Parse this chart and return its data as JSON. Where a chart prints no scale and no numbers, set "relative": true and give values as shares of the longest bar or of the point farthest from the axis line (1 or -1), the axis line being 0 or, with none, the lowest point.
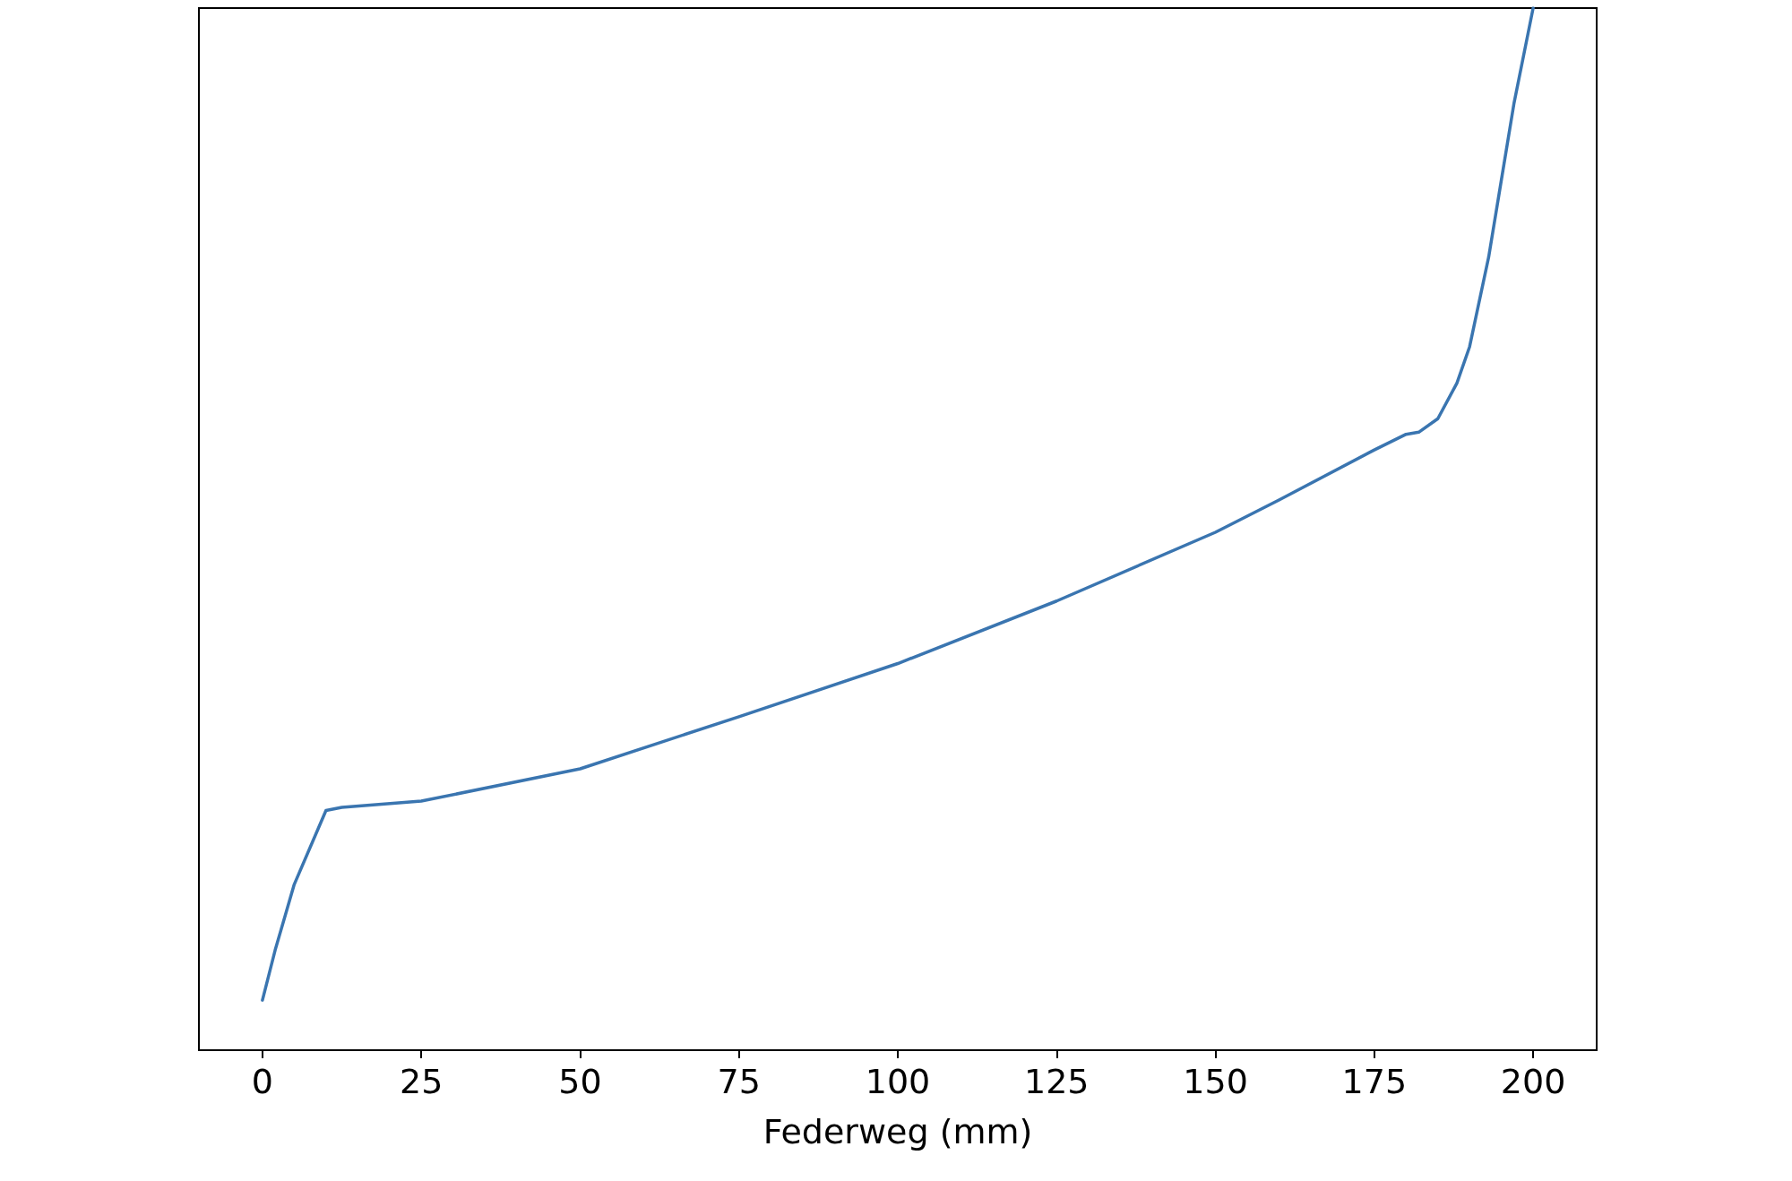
{
  "chart_data": {
    "type": "line",
    "xlabel": "Federweg (mm)",
    "relative": true,
    "xlim": [
      -10,
      210
    ],
    "xticks": [
      0,
      25,
      50,
      75,
      100,
      125,
      150,
      175,
      200
    ],
    "marker": "none",
    "series": [
      {
        "color": "#3a75b0",
        "x": [
          0,
          2,
          5,
          10,
          12.5,
          25,
          50,
          75,
          100,
          125,
          150,
          160,
          175,
          180,
          182,
          185,
          188,
          190,
          193,
          195,
          197,
          200
        ],
        "values": [
          0.048,
          0.096,
          0.159,
          0.23,
          0.233,
          0.239,
          0.27,
          0.32,
          0.371,
          0.431,
          0.497,
          0.528,
          0.576,
          0.591,
          0.593,
          0.606,
          0.64,
          0.675,
          0.761,
          0.835,
          0.909,
          1.0
        ]
      }
    ]
  }
}
